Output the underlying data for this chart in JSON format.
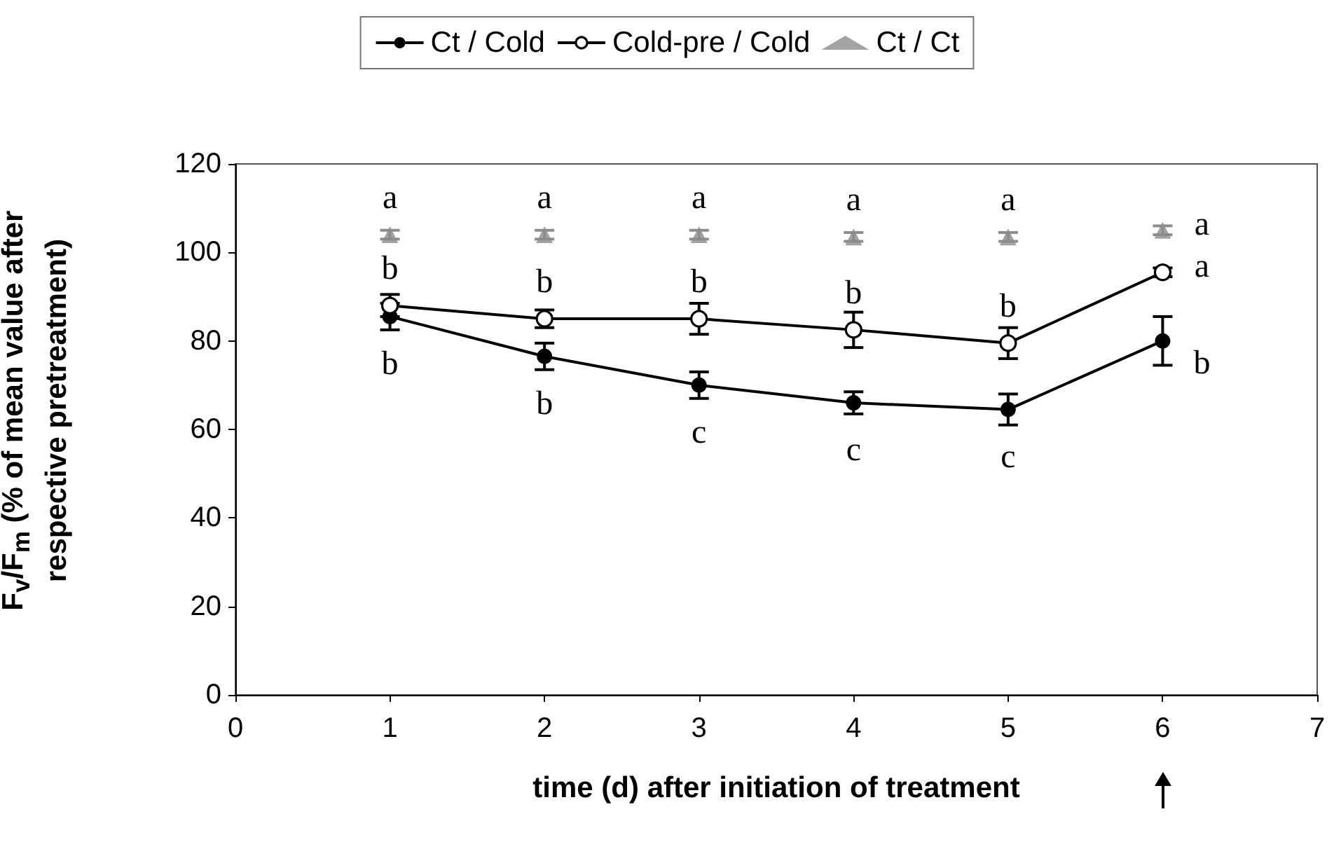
{
  "chart_data": {
    "type": "line",
    "xlabel": "time (d) after initiation of treatment",
    "ylabel": "F$_{v}$/F$_{m}$ (% of mean value after respective pretreatment)",
    "x": [
      1,
      2,
      3,
      4,
      5,
      6
    ],
    "xlim": [
      0,
      7
    ],
    "xticks": [
      0,
      1,
      2,
      3,
      4,
      5,
      6,
      7
    ],
    "ylim": [
      0,
      120
    ],
    "yticks": [
      0,
      20,
      40,
      60,
      80,
      100,
      120
    ],
    "grid": false,
    "legend": "top",
    "marker": "circle",
    "line_style": "solid",
    "series": [
      {
        "name": "Ct / Cold",
        "color": "#000000",
        "values": [
          85.5,
          76.5,
          70,
          66,
          64.5,
          80
        ],
        "errors": [
          3,
          3,
          3,
          2.5,
          3.5,
          5.5
        ]
      },
      {
        "name": "Cold-pre / Cold",
        "color": "#000000",
        "colors": [
          "#ffffff",
          "#ffffff",
          "#ffffff",
          "#ffffff",
          "#ffffff",
          "#ffffff"
        ],
        "values": [
          88,
          85,
          85,
          82.5,
          79.5,
          95.5
        ],
        "errors": [
          2.5,
          2,
          3.5,
          4,
          3.5,
          1
        ]
      },
      {
        "name": "Ct / Ct",
        "type": "scatter",
        "marker": "triangle",
        "color": "#8c8c8c",
        "values": [
          104,
          104,
          104,
          103.5,
          103.5,
          105
        ],
        "errors": [
          1,
          1,
          1,
          1,
          1,
          1
        ]
      }
    ],
    "annotations": [
      {
        "text": "a",
        "x": 1,
        "y": 104
      },
      {
        "text": "a",
        "x": 2,
        "y": 104
      },
      {
        "text": "a",
        "x": 3,
        "y": 104
      },
      {
        "text": "a",
        "x": 4,
        "y": 103.5
      },
      {
        "text": "a",
        "x": 5,
        "y": 103.5
      },
      {
        "text": "a",
        "x": 6,
        "y": 105
      },
      {
        "text": "b",
        "x": 1,
        "y": 88
      },
      {
        "text": "b",
        "x": 2,
        "y": 85
      },
      {
        "text": "b",
        "x": 3,
        "y": 85
      },
      {
        "text": "b",
        "x": 4,
        "y": 82.5
      },
      {
        "text": "b",
        "x": 5,
        "y": 79.5
      },
      {
        "text": "a",
        "x": 6,
        "y": 95.5
      },
      {
        "text": "b",
        "x": 1,
        "y": 85.5
      },
      {
        "text": "b",
        "x": 2,
        "y": 76.5
      },
      {
        "text": "c",
        "x": 3,
        "y": 70
      },
      {
        "text": "c",
        "x": 4,
        "y": 66
      },
      {
        "text": "c",
        "x": 5,
        "y": 64.5
      },
      {
        "text": "b",
        "x": 6,
        "y": 80
      }
    ]
  }
}
